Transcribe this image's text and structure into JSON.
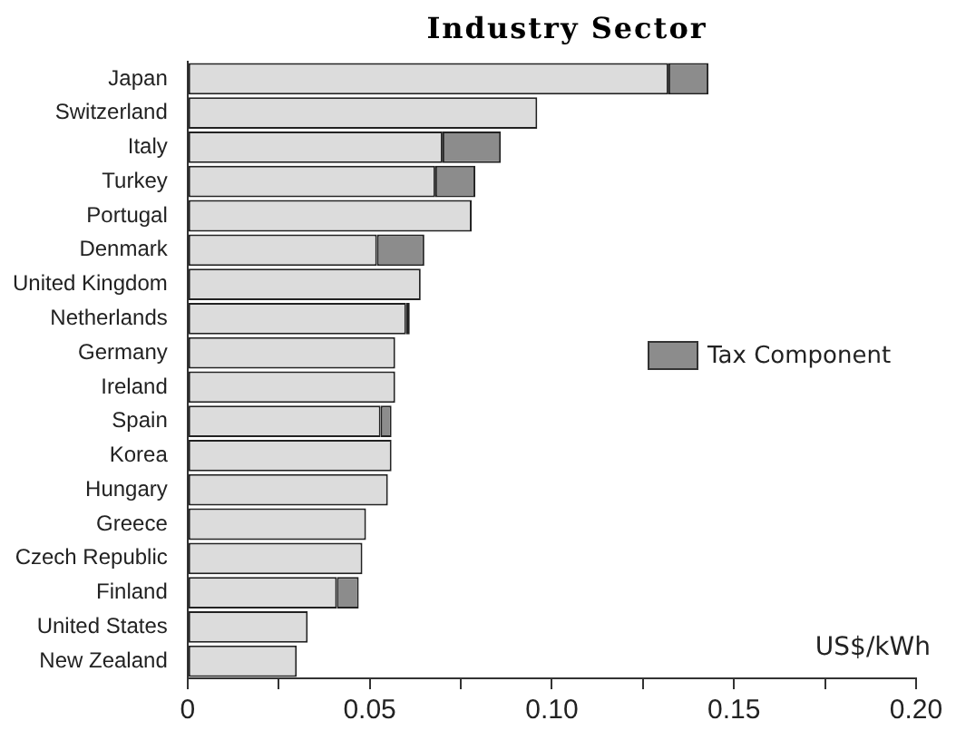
{
  "chart_data": {
    "type": "bar",
    "orientation": "horizontal",
    "stacked": true,
    "title": "Industry Sector",
    "categories": [
      "Japan",
      "Switzerland",
      "Italy",
      "Turkey",
      "Portugal",
      "Denmark",
      "United Kingdom",
      "Netherlands",
      "Germany",
      "Ireland",
      "Spain",
      "Korea",
      "Hungary",
      "Greece",
      "Czech Republic",
      "Finland",
      "United States",
      "New Zealand"
    ],
    "series": [
      {
        "color": "#dcdcdc",
        "values": [
          0.132,
          0.096,
          0.07,
          0.068,
          0.078,
          0.052,
          0.064,
          0.06,
          0.057,
          0.057,
          0.053,
          0.056,
          0.055,
          0.049,
          0.048,
          0.041,
          0.033,
          0.03
        ]
      },
      {
        "name": "Tax Component",
        "color": "#8c8c8c",
        "values": [
          0.011,
          0,
          0.016,
          0.011,
          0,
          0.013,
          0,
          0.001,
          0,
          0,
          0.003,
          0,
          0,
          0,
          0,
          0.006,
          0,
          0
        ]
      }
    ],
    "xlim": [
      0,
      0.2
    ],
    "xticks": [
      0,
      {
        "value": 0.025,
        "label": null
      },
      0.05,
      {
        "value": 0.075,
        "label": null
      },
      {
        "value": 0.1,
        "label": "0.10"
      },
      {
        "value": 0.125,
        "label": null
      },
      0.15,
      {
        "value": 0.175,
        "label": null
      },
      {
        "value": 0.2,
        "label": "0.20"
      }
    ],
    "grid": false,
    "legend": "right",
    "annotations": [
      "US$/kWh"
    ]
  }
}
